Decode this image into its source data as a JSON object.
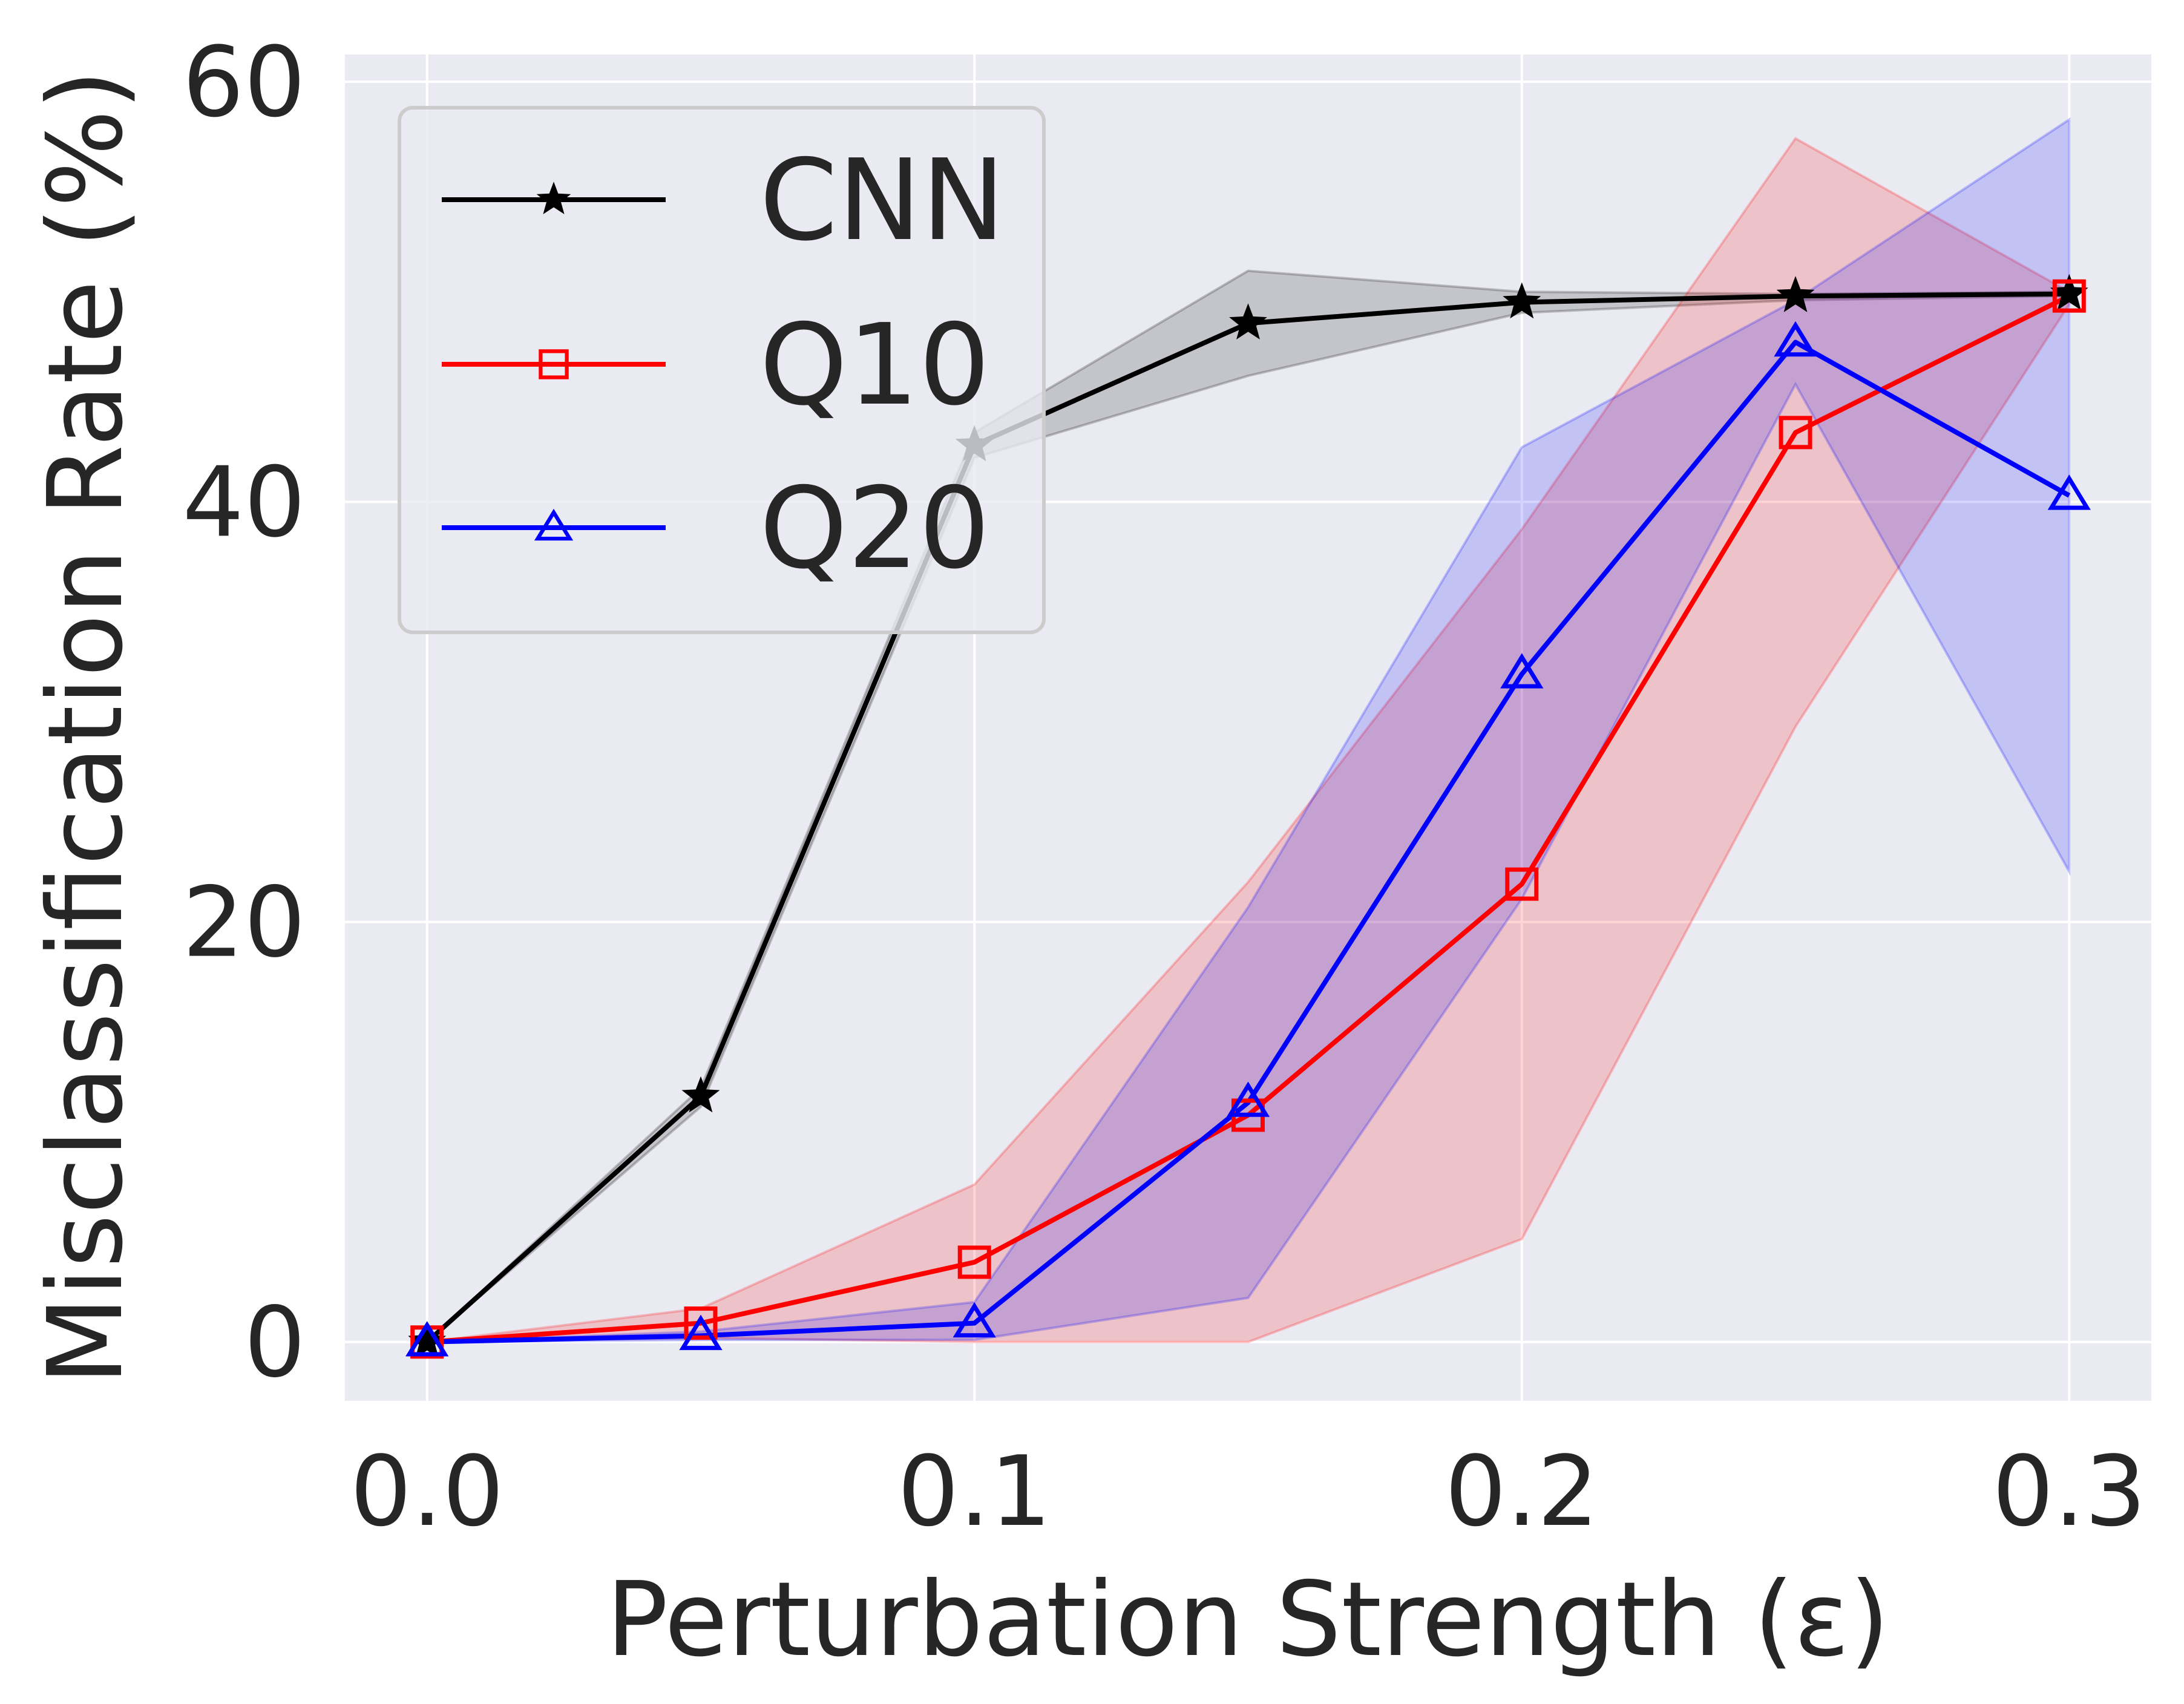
{
  "chart_data": {
    "type": "line",
    "title": "",
    "xlabel": "Perturbation Strength (ε)",
    "ylabel": "Misclassification Rate (%)",
    "xlim": [
      -0.015,
      0.315
    ],
    "ylim": [
      -2.8,
      61.3
    ],
    "xticks": [
      0.0,
      0.1,
      0.2,
      0.3
    ],
    "xtick_labels": [
      "0.0",
      "0.1",
      "0.2",
      "0.3"
    ],
    "yticks": [
      0,
      20,
      40,
      60
    ],
    "ytick_labels": [
      "0",
      "20",
      "40",
      "60"
    ],
    "grid": true,
    "legend_position": "top-left",
    "x": [
      0.0,
      0.05,
      0.1,
      0.15,
      0.2,
      0.25,
      0.3
    ],
    "series": [
      {
        "name": "CNN",
        "color": "#000000",
        "marker": "star",
        "values": [
          0.0,
          11.7,
          42.7,
          48.5,
          49.5,
          49.8,
          49.9
        ],
        "band_lower": [
          0.0,
          11.2,
          42.1,
          46.0,
          49.0,
          49.6,
          49.8
        ],
        "band_upper": [
          0.0,
          12.1,
          43.3,
          51.0,
          50.0,
          49.9,
          50.0
        ]
      },
      {
        "name": "Q10",
        "color": "#ff0000",
        "marker": "square",
        "values": [
          0.0,
          0.9,
          3.8,
          10.8,
          21.8,
          43.3,
          49.8
        ],
        "band_lower": [
          0.0,
          0.2,
          0.0,
          0.0,
          4.9,
          29.3,
          49.4
        ],
        "band_upper": [
          0.0,
          1.6,
          7.5,
          21.9,
          38.7,
          57.3,
          50.0
        ]
      },
      {
        "name": "Q20",
        "color": "#0000ff",
        "marker": "triangle",
        "values": [
          0.0,
          0.3,
          0.9,
          11.4,
          31.8,
          47.6,
          40.3
        ],
        "band_lower": [
          0.0,
          0.1,
          0.1,
          2.1,
          21.1,
          45.6,
          22.4
        ],
        "band_upper": [
          0.0,
          0.5,
          1.9,
          20.7,
          42.6,
          49.6,
          58.2
        ]
      }
    ]
  }
}
